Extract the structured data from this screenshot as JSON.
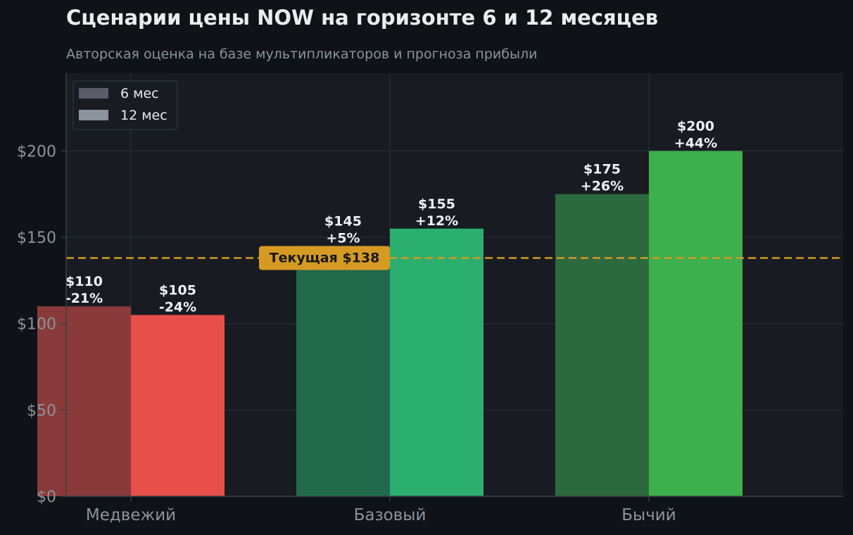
{
  "chart_data": {
    "type": "bar",
    "title": "Сценарии цены NOW на горизонте 6 и 12 месяцев",
    "subtitle": "Авторская оценка на базе мультипликаторов и прогноза прибыли",
    "categories": [
      "Медвежий",
      "Базовый",
      "Бычий"
    ],
    "series": [
      {
        "name": "6 мес",
        "values": [
          110,
          145,
          175
        ],
        "labels": [
          "$110",
          "$145",
          "$175"
        ],
        "changes": [
          "-21%",
          "+5%",
          "+26%"
        ],
        "colors": [
          "#8a3a3a",
          "#216a4c",
          "#2c6a3e"
        ]
      },
      {
        "name": "12 мес",
        "values": [
          105,
          155,
          200
        ],
        "labels": [
          "$105",
          "$155",
          "$200"
        ],
        "changes": [
          "-24%",
          "+12%",
          "+44%"
        ],
        "colors": [
          "#e84f4a",
          "#2baf6e",
          "#3daf4d"
        ]
      }
    ],
    "yticks": [
      0,
      50,
      100,
      150,
      200
    ],
    "ytick_labels": [
      "$0",
      "$50",
      "$100",
      "$150",
      "$200"
    ],
    "ylim": [
      0,
      245
    ],
    "grid": true,
    "legend": {
      "position": "top-left",
      "colors": [
        "#5a5d68",
        "#8d939c"
      ]
    },
    "reference_line": {
      "value": 138,
      "label": "Текущая $138",
      "color": "#d69a22"
    }
  }
}
